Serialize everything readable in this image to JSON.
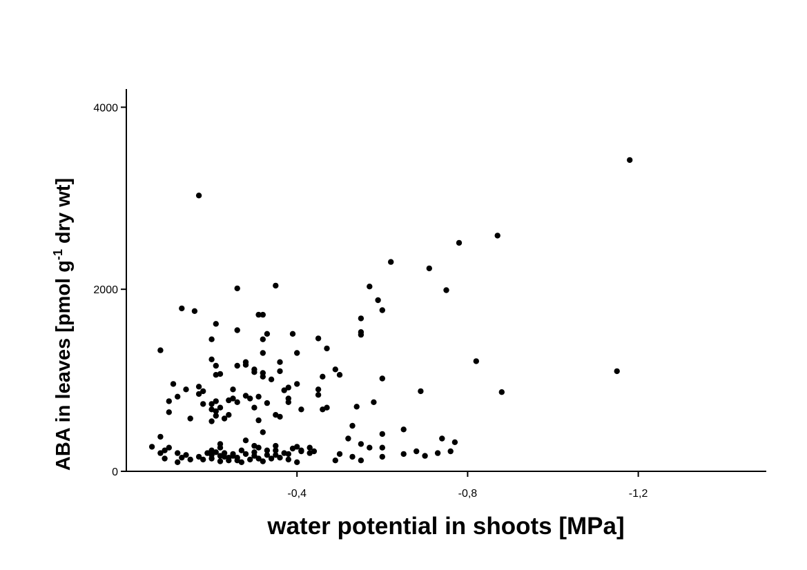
{
  "chart_data": {
    "type": "scatter",
    "xlabel": "water potential in shoots [MPa]",
    "ylabel": {
      "prefix": "ABA in leaves [pmol g",
      "superscript": "-1",
      "suffix": " dry wt]"
    },
    "xlim": [
      0.0,
      -1.5
    ],
    "ylim": [
      0,
      4200
    ],
    "xticks": [
      {
        "value": -0.4,
        "label": "-0,4"
      },
      {
        "value": -0.8,
        "label": "-0,8"
      },
      {
        "value": -1.2,
        "label": "-1,2"
      }
    ],
    "yticks": [
      {
        "value": 0,
        "label": "0"
      },
      {
        "value": 2000,
        "label": "2000"
      },
      {
        "value": 4000,
        "label": "4000"
      }
    ],
    "grid": false,
    "marker_color": "#000000",
    "points": [
      [
        -1.18,
        3420
      ],
      [
        -1.15,
        1100
      ],
      [
        -0.87,
        2590
      ],
      [
        -0.88,
        870
      ],
      [
        -0.82,
        1210
      ],
      [
        -0.78,
        2510
      ],
      [
        -0.75,
        1990
      ],
      [
        -0.71,
        2230
      ],
      [
        -0.69,
        880
      ],
      [
        -0.62,
        2300
      ],
      [
        -0.6,
        1770
      ],
      [
        -0.59,
        1880
      ],
      [
        -0.57,
        2030
      ],
      [
        -0.6,
        1020
      ],
      [
        -0.58,
        760
      ],
      [
        -0.55,
        1680
      ],
      [
        -0.55,
        1530
      ],
      [
        -0.55,
        1500
      ],
      [
        -0.54,
        710
      ],
      [
        -0.53,
        500
      ],
      [
        -0.6,
        410
      ],
      [
        -0.65,
        460
      ],
      [
        -0.74,
        360
      ],
      [
        -0.77,
        320
      ],
      [
        -0.73,
        200
      ],
      [
        -0.76,
        220
      ],
      [
        -0.68,
        220
      ],
      [
        -0.7,
        170
      ],
      [
        -0.65,
        190
      ],
      [
        -0.6,
        260
      ],
      [
        -0.6,
        160
      ],
      [
        -0.57,
        260
      ],
      [
        -0.55,
        300
      ],
      [
        -0.53,
        160
      ],
      [
        -0.55,
        120
      ],
      [
        -0.5,
        190
      ],
      [
        -0.52,
        360
      ],
      [
        -0.49,
        120
      ],
      [
        -0.5,
        1060
      ],
      [
        -0.49,
        1120
      ],
      [
        -0.47,
        1350
      ],
      [
        -0.45,
        1460
      ],
      [
        -0.46,
        1040
      ],
      [
        -0.45,
        900
      ],
      [
        -0.45,
        840
      ],
      [
        -0.46,
        680
      ],
      [
        -0.47,
        700
      ],
      [
        -0.44,
        220
      ],
      [
        -0.43,
        260
      ],
      [
        -0.41,
        230
      ],
      [
        -0.4,
        1300
      ],
      [
        -0.39,
        1510
      ],
      [
        -0.4,
        960
      ],
      [
        -0.38,
        920
      ],
      [
        -0.38,
        760
      ],
      [
        -0.41,
        680
      ],
      [
        -0.38,
        800
      ],
      [
        -0.37,
        890
      ],
      [
        -0.36,
        1100
      ],
      [
        -0.36,
        1200
      ],
      [
        -0.35,
        2040
      ],
      [
        -0.36,
        600
      ],
      [
        -0.35,
        620
      ],
      [
        -0.34,
        1010
      ],
      [
        -0.33,
        750
      ],
      [
        -0.33,
        1510
      ],
      [
        -0.32,
        1720
      ],
      [
        -0.31,
        1720
      ],
      [
        -0.32,
        1450
      ],
      [
        -0.32,
        1300
      ],
      [
        -0.32,
        1080
      ],
      [
        -0.32,
        1040
      ],
      [
        -0.3,
        1120
      ],
      [
        -0.3,
        1090
      ],
      [
        -0.31,
        820
      ],
      [
        -0.29,
        800
      ],
      [
        -0.3,
        700
      ],
      [
        -0.31,
        560
      ],
      [
        -0.32,
        430
      ],
      [
        -0.28,
        1170
      ],
      [
        -0.28,
        1200
      ],
      [
        -0.28,
        830
      ],
      [
        -0.26,
        1160
      ],
      [
        -0.26,
        1550
      ],
      [
        -0.26,
        2010
      ],
      [
        -0.25,
        800
      ],
      [
        -0.26,
        760
      ],
      [
        -0.24,
        780
      ],
      [
        -0.25,
        900
      ],
      [
        -0.24,
        620
      ],
      [
        -0.23,
        580
      ],
      [
        -0.22,
        1070
      ],
      [
        -0.22,
        700
      ],
      [
        -0.21,
        1620
      ],
      [
        -0.2,
        1450
      ],
      [
        -0.21,
        1160
      ],
      [
        -0.2,
        1230
      ],
      [
        -0.21,
        1060
      ],
      [
        -0.21,
        770
      ],
      [
        -0.2,
        740
      ],
      [
        -0.2,
        680
      ],
      [
        -0.21,
        660
      ],
      [
        -0.21,
        610
      ],
      [
        -0.2,
        550
      ],
      [
        -0.17,
        3030
      ],
      [
        -0.17,
        930
      ],
      [
        -0.17,
        850
      ],
      [
        -0.18,
        880
      ],
      [
        -0.16,
        1760
      ],
      [
        -0.13,
        1790
      ],
      [
        -0.14,
        900
      ],
      [
        -0.12,
        820
      ],
      [
        -0.11,
        960
      ],
      [
        -0.1,
        770
      ],
      [
        -0.1,
        650
      ],
      [
        -0.15,
        580
      ],
      [
        -0.08,
        1330
      ],
      [
        -0.08,
        380
      ],
      [
        -0.06,
        270
      ],
      [
        -0.09,
        230
      ],
      [
        -0.08,
        200
      ],
      [
        -0.1,
        260
      ],
      [
        -0.12,
        200
      ],
      [
        -0.14,
        180
      ],
      [
        -0.09,
        140
      ],
      [
        -0.12,
        100
      ],
      [
        -0.15,
        130
      ],
      [
        -0.13,
        150
      ],
      [
        -0.18,
        740
      ],
      [
        -0.2,
        180
      ],
      [
        -0.21,
        210
      ],
      [
        -0.2,
        140
      ],
      [
        -0.22,
        110
      ],
      [
        -0.23,
        160
      ],
      [
        -0.24,
        120
      ],
      [
        -0.25,
        190
      ],
      [
        -0.26,
        150
      ],
      [
        -0.27,
        100
      ],
      [
        -0.28,
        190
      ],
      [
        -0.29,
        130
      ],
      [
        -0.3,
        170
      ],
      [
        -0.3,
        210
      ],
      [
        -0.31,
        260
      ],
      [
        -0.31,
        140
      ],
      [
        -0.32,
        110
      ],
      [
        -0.33,
        180
      ],
      [
        -0.34,
        140
      ],
      [
        -0.35,
        230
      ],
      [
        -0.35,
        180
      ],
      [
        -0.36,
        150
      ],
      [
        -0.37,
        200
      ],
      [
        -0.38,
        130
      ],
      [
        -0.39,
        250
      ],
      [
        -0.4,
        270
      ],
      [
        -0.4,
        100
      ],
      [
        -0.41,
        220
      ],
      [
        -0.43,
        200
      ],
      [
        -0.22,
        300
      ],
      [
        -0.28,
        340
      ],
      [
        -0.3,
        280
      ],
      [
        -0.35,
        280
      ],
      [
        -0.23,
        200
      ],
      [
        -0.22,
        260
      ],
      [
        -0.2,
        230
      ],
      [
        -0.19,
        200
      ],
      [
        -0.27,
        230
      ],
      [
        -0.33,
        230
      ],
      [
        -0.38,
        190
      ],
      [
        -0.26,
        120
      ],
      [
        -0.24,
        150
      ],
      [
        -0.17,
        160
      ],
      [
        -0.18,
        130
      ],
      [
        -0.22,
        170
      ],
      [
        -0.25,
        170
      ]
    ]
  }
}
